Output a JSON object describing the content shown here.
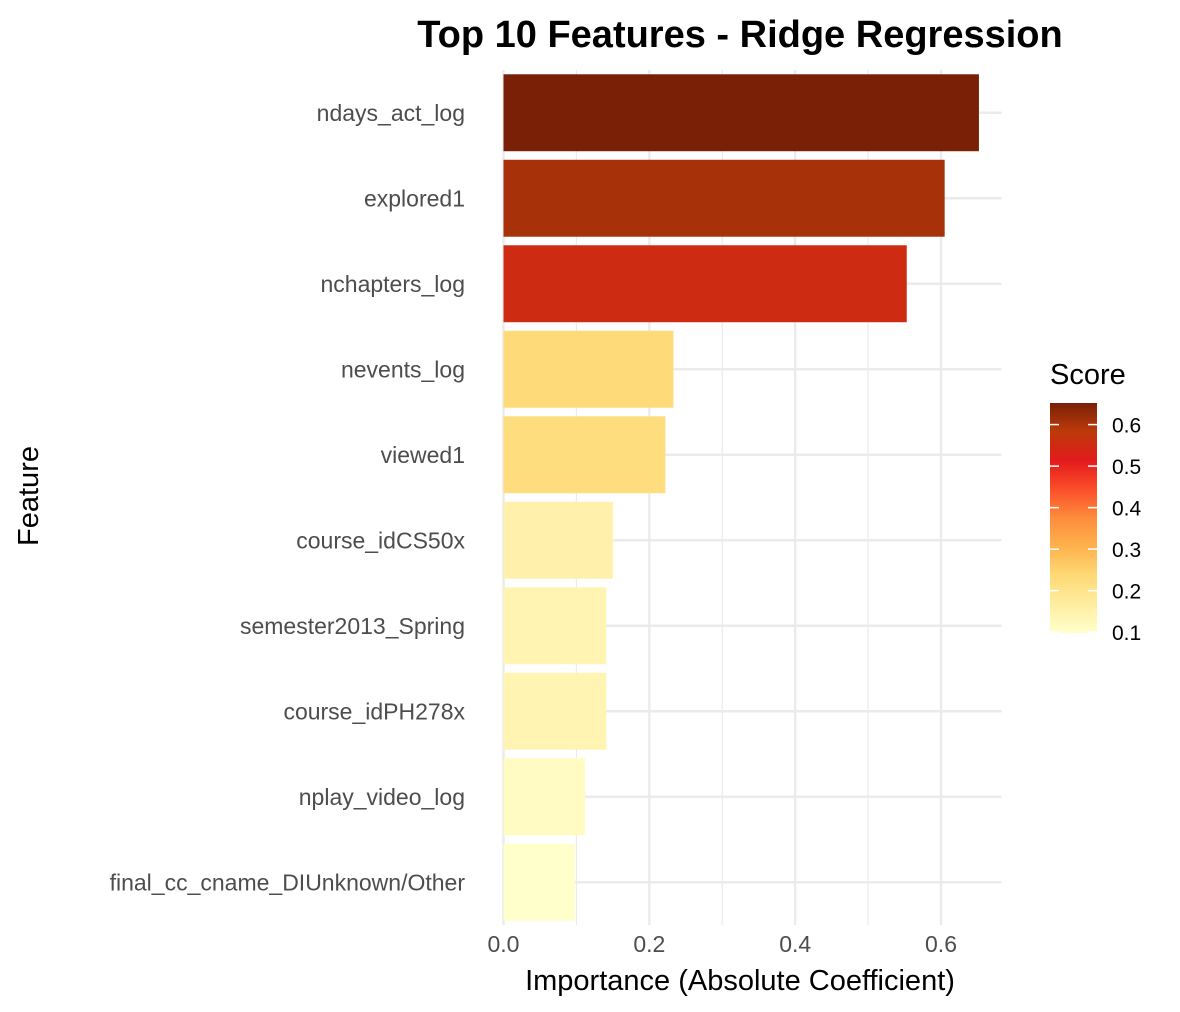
{
  "chart_data": {
    "type": "bar",
    "orientation": "horizontal",
    "title": "Top 10 Features - Ridge Regression",
    "xlabel": "Importance (Absolute Coefficient)",
    "ylabel": "Feature",
    "xlim": [
      -0.01,
      0.685
    ],
    "x_ticks": [
      0.0,
      0.2,
      0.4,
      0.6
    ],
    "x_tick_labels": [
      "0.0",
      "0.2",
      "0.4",
      "0.6"
    ],
    "grid": true,
    "categories": [
      "ndays_act_log",
      "explored1",
      "nchapters_log",
      "nevents_log",
      "viewed1",
      "course_idCS50x",
      "semester2013_Spring",
      "course_idPH278x",
      "nplay_video_log",
      "final_cc_cname_DIUnknown/Other"
    ],
    "values": [
      0.652,
      0.605,
      0.553,
      0.233,
      0.222,
      0.15,
      0.141,
      0.141,
      0.112,
      0.098
    ],
    "legend": {
      "title": "Score",
      "placement": "right",
      "range": [
        0.098,
        0.652
      ],
      "ticks": [
        0.1,
        0.2,
        0.3,
        0.4,
        0.5,
        0.6
      ],
      "tick_labels": [
        "0.1",
        "0.2",
        "0.3",
        "0.4",
        "0.5",
        "0.6"
      ],
      "colors": [
        "#ffffcc",
        "#ffeda0",
        "#fed976",
        "#feb24c",
        "#fd8d3c",
        "#fc4e2a",
        "#e31a1c",
        "#bd3a0a",
        "#7a2006"
      ]
    }
  }
}
